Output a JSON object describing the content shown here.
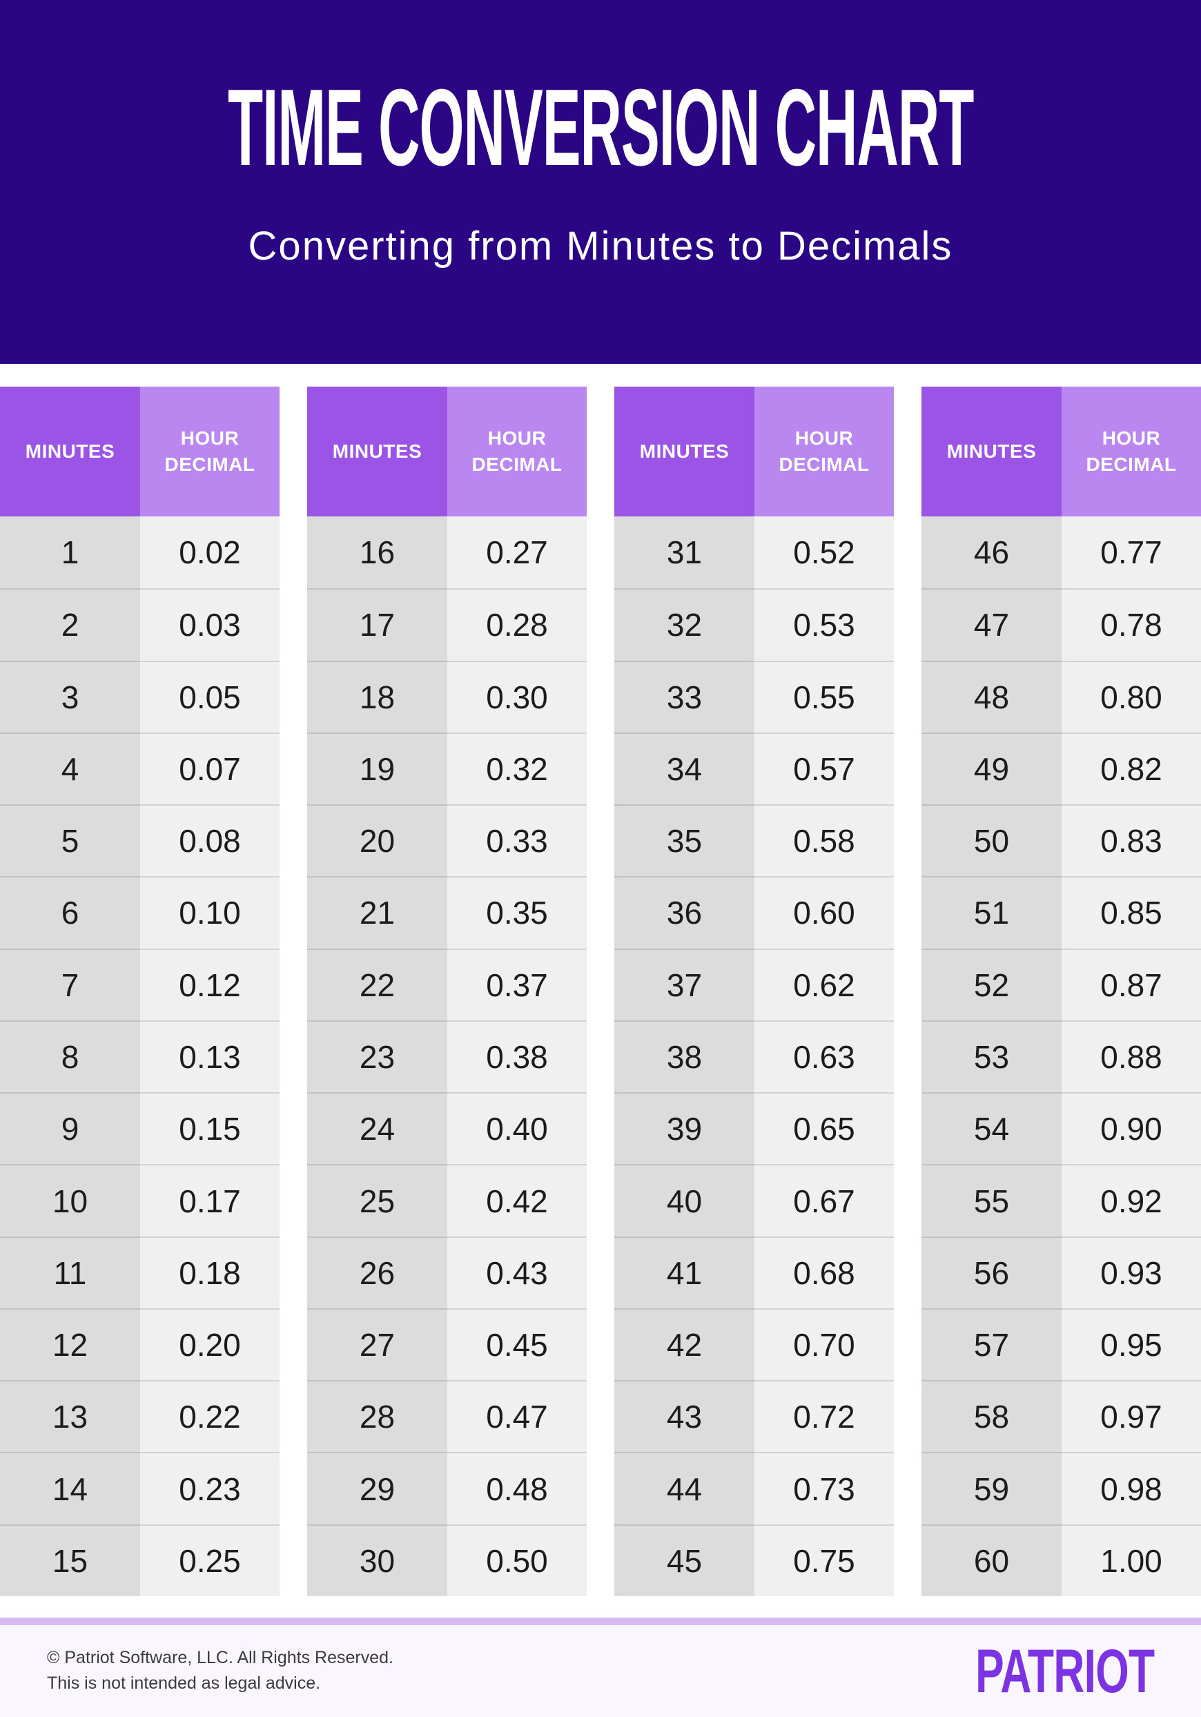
{
  "page": {
    "title": "TIME CONVERSION CHART",
    "subtitle": "Converting from Minutes to Decimals"
  },
  "table_header": {
    "minutes_label": "MINUTES",
    "hour_decimal_label": "HOUR DECIMAL"
  },
  "chart_data": {
    "type": "table",
    "title": "TIME CONVERSION CHART",
    "subtitle": "Converting from Minutes to Decimals",
    "columns": [
      "MINUTES",
      "HOUR DECIMAL"
    ],
    "layout": "four side-by-side two-column tables, 15 rows each",
    "rows_per_table": 15,
    "rows": [
      [
        1,
        "0.02"
      ],
      [
        2,
        "0.03"
      ],
      [
        3,
        "0.05"
      ],
      [
        4,
        "0.07"
      ],
      [
        5,
        "0.08"
      ],
      [
        6,
        "0.10"
      ],
      [
        7,
        "0.12"
      ],
      [
        8,
        "0.13"
      ],
      [
        9,
        "0.15"
      ],
      [
        10,
        "0.17"
      ],
      [
        11,
        "0.18"
      ],
      [
        12,
        "0.20"
      ],
      [
        13,
        "0.22"
      ],
      [
        14,
        "0.23"
      ],
      [
        15,
        "0.25"
      ],
      [
        16,
        "0.27"
      ],
      [
        17,
        "0.28"
      ],
      [
        18,
        "0.30"
      ],
      [
        19,
        "0.32"
      ],
      [
        20,
        "0.33"
      ],
      [
        21,
        "0.35"
      ],
      [
        22,
        "0.37"
      ],
      [
        23,
        "0.38"
      ],
      [
        24,
        "0.40"
      ],
      [
        25,
        "0.42"
      ],
      [
        26,
        "0.43"
      ],
      [
        27,
        "0.45"
      ],
      [
        28,
        "0.47"
      ],
      [
        29,
        "0.48"
      ],
      [
        30,
        "0.50"
      ],
      [
        31,
        "0.52"
      ],
      [
        32,
        "0.53"
      ],
      [
        33,
        "0.55"
      ],
      [
        34,
        "0.57"
      ],
      [
        35,
        "0.58"
      ],
      [
        36,
        "0.60"
      ],
      [
        37,
        "0.62"
      ],
      [
        38,
        "0.63"
      ],
      [
        39,
        "0.65"
      ],
      [
        40,
        "0.67"
      ],
      [
        41,
        "0.68"
      ],
      [
        42,
        "0.70"
      ],
      [
        43,
        "0.72"
      ],
      [
        44,
        "0.73"
      ],
      [
        45,
        "0.75"
      ],
      [
        46,
        "0.77"
      ],
      [
        47,
        "0.78"
      ],
      [
        48,
        "0.80"
      ],
      [
        49,
        "0.82"
      ],
      [
        50,
        "0.83"
      ],
      [
        51,
        "0.85"
      ],
      [
        52,
        "0.87"
      ],
      [
        53,
        "0.88"
      ],
      [
        54,
        "0.90"
      ],
      [
        55,
        "0.92"
      ],
      [
        56,
        "0.93"
      ],
      [
        57,
        "0.95"
      ],
      [
        58,
        "0.97"
      ],
      [
        59,
        "0.98"
      ],
      [
        60,
        "1.00"
      ]
    ]
  },
  "footer": {
    "copyright": "© Patriot Software, LLC. All Rights Reserved.",
    "disclaimer": "This is not intended as legal advice.",
    "logo": "PATRIOT"
  },
  "colors": {
    "hero_bg": "#2A0584",
    "minutes_header_bg": "#9B54E6",
    "decimal_header_bg": "#B987EF",
    "minutes_cell_bg": "#DCDCDC",
    "decimal_cell_bg": "#F0F0F0",
    "divider": "#D9BBF3",
    "footer_bg": "#FAF6FD",
    "logo": "#7C33E1",
    "cell_text": "#1C1C1C",
    "footer_text": "#3B3B3B"
  }
}
